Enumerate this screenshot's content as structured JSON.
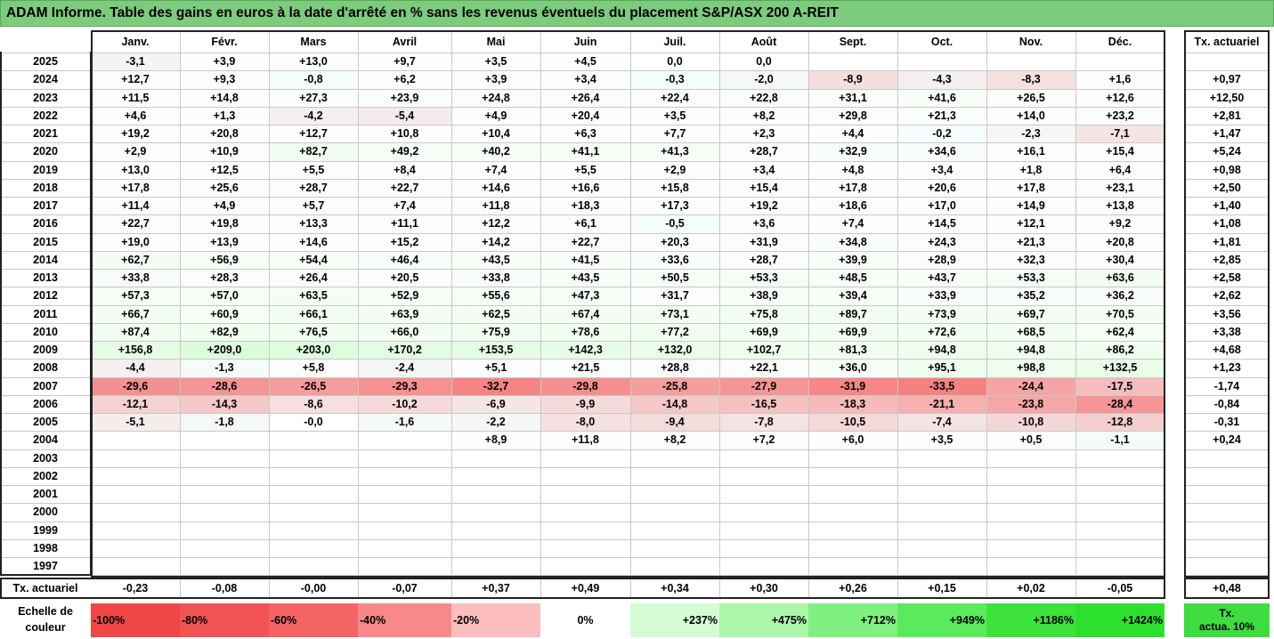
{
  "title": "ADAM Informe. Table des gains en euros à la date d'arrêté en % sans les revenus éventuels du placement S&P/ASX 200 A-REIT",
  "months": [
    "Janv.",
    "Févr.",
    "Mars",
    "Avril",
    "Mai",
    "Juin",
    "Juil.",
    "Août",
    "Sept.",
    "Oct.",
    "Nov.",
    "Déc."
  ],
  "tx_header": "Tx. actuariel",
  "rows": [
    {
      "year": "2025",
      "values": [
        "-3,1",
        "+3,9",
        "+13,0",
        "+9,7",
        "+3,5",
        "+4,5",
        "0,0",
        "0,0",
        "",
        "",
        "",
        ""
      ],
      "tx": ""
    },
    {
      "year": "2024",
      "values": [
        "+12,7",
        "+9,3",
        "-0,8",
        "+6,2",
        "+3,9",
        "+3,4",
        "-0,3",
        "-2,0",
        "-8,9",
        "-4,3",
        "-8,3",
        "+1,6"
      ],
      "tx": "+0,97"
    },
    {
      "year": "2023",
      "values": [
        "+11,5",
        "+14,8",
        "+27,3",
        "+23,9",
        "+24,8",
        "+26,4",
        "+22,4",
        "+22,8",
        "+31,1",
        "+41,6",
        "+26,5",
        "+12,6"
      ],
      "tx": "+12,50"
    },
    {
      "year": "2022",
      "values": [
        "+4,6",
        "+1,3",
        "-4,2",
        "-5,4",
        "+4,9",
        "+20,4",
        "+3,5",
        "+8,2",
        "+29,8",
        "+21,3",
        "+14,0",
        "+23,2"
      ],
      "tx": "+2,81"
    },
    {
      "year": "2021",
      "values": [
        "+19,2",
        "+20,8",
        "+12,7",
        "+10,8",
        "+10,4",
        "+6,3",
        "+7,7",
        "+2,3",
        "+4,4",
        "-0,2",
        "-2,3",
        "-7,1"
      ],
      "tx": "+1,47"
    },
    {
      "year": "2020",
      "values": [
        "+2,9",
        "+10,9",
        "+82,7",
        "+49,2",
        "+40,2",
        "+41,1",
        "+41,3",
        "+28,7",
        "+32,9",
        "+34,6",
        "+16,1",
        "+15,4"
      ],
      "tx": "+5,24"
    },
    {
      "year": "2019",
      "values": [
        "+13,0",
        "+12,5",
        "+5,5",
        "+8,4",
        "+7,4",
        "+5,5",
        "+2,9",
        "+3,4",
        "+4,8",
        "+3,4",
        "+1,8",
        "+6,4"
      ],
      "tx": "+0,98"
    },
    {
      "year": "2018",
      "values": [
        "+17,8",
        "+25,6",
        "+28,7",
        "+22,7",
        "+14,6",
        "+16,6",
        "+15,8",
        "+15,4",
        "+17,8",
        "+20,6",
        "+17,8",
        "+23,1"
      ],
      "tx": "+2,50"
    },
    {
      "year": "2017",
      "values": [
        "+11,4",
        "+4,9",
        "+5,7",
        "+7,4",
        "+11,8",
        "+18,3",
        "+17,3",
        "+19,2",
        "+18,6",
        "+17,0",
        "+14,9",
        "+13,8"
      ],
      "tx": "+1,40"
    },
    {
      "year": "2016",
      "values": [
        "+22,7",
        "+19,8",
        "+13,3",
        "+11,1",
        "+12,2",
        "+6,1",
        "-0,5",
        "+3,6",
        "+7,4",
        "+14,5",
        "+12,1",
        "+9,2"
      ],
      "tx": "+1,08"
    },
    {
      "year": "2015",
      "values": [
        "+19,0",
        "+13,9",
        "+14,6",
        "+15,2",
        "+14,2",
        "+22,7",
        "+20,3",
        "+31,9",
        "+34,8",
        "+24,3",
        "+21,3",
        "+20,8"
      ],
      "tx": "+1,81"
    },
    {
      "year": "2014",
      "values": [
        "+62,7",
        "+56,9",
        "+54,4",
        "+46,4",
        "+43,5",
        "+41,5",
        "+33,6",
        "+28,7",
        "+39,9",
        "+28,9",
        "+32,3",
        "+30,4"
      ],
      "tx": "+2,85"
    },
    {
      "year": "2013",
      "values": [
        "+33,8",
        "+28,3",
        "+26,4",
        "+20,5",
        "+33,8",
        "+43,5",
        "+50,5",
        "+53,3",
        "+48,5",
        "+43,7",
        "+53,3",
        "+63,6"
      ],
      "tx": "+2,58"
    },
    {
      "year": "2012",
      "values": [
        "+57,3",
        "+57,0",
        "+63,5",
        "+52,9",
        "+55,6",
        "+47,3",
        "+31,7",
        "+38,9",
        "+39,4",
        "+33,9",
        "+35,2",
        "+36,2"
      ],
      "tx": "+2,62"
    },
    {
      "year": "2011",
      "values": [
        "+66,7",
        "+60,9",
        "+66,1",
        "+63,9",
        "+62,5",
        "+67,4",
        "+73,1",
        "+75,8",
        "+89,7",
        "+73,9",
        "+69,7",
        "+70,5"
      ],
      "tx": "+3,56"
    },
    {
      "year": "2010",
      "values": [
        "+87,4",
        "+82,9",
        "+76,5",
        "+66,0",
        "+75,9",
        "+78,6",
        "+77,2",
        "+69,9",
        "+69,9",
        "+72,6",
        "+68,5",
        "+62,4"
      ],
      "tx": "+3,38"
    },
    {
      "year": "2009",
      "values": [
        "+156,8",
        "+209,0",
        "+203,0",
        "+170,2",
        "+153,5",
        "+142,3",
        "+132,0",
        "+102,7",
        "+81,3",
        "+94,8",
        "+94,8",
        "+86,2"
      ],
      "tx": "+4,68"
    },
    {
      "year": "2008",
      "values": [
        "-4,4",
        "-1,3",
        "+5,8",
        "-2,4",
        "+5,1",
        "+21,5",
        "+28,8",
        "+22,1",
        "+36,0",
        "+95,1",
        "+98,8",
        "+132,5"
      ],
      "tx": "+1,23"
    },
    {
      "year": "2007",
      "values": [
        "-29,6",
        "-28,6",
        "-26,5",
        "-29,3",
        "-32,7",
        "-29,8",
        "-25,8",
        "-27,9",
        "-31,9",
        "-33,5",
        "-24,4",
        "-17,5"
      ],
      "tx": "-1,74"
    },
    {
      "year": "2006",
      "values": [
        "-12,1",
        "-14,3",
        "-8,6",
        "-10,2",
        "-6,9",
        "-9,9",
        "-14,8",
        "-16,5",
        "-18,3",
        "-21,1",
        "-23,8",
        "-28,4"
      ],
      "tx": "-0,84"
    },
    {
      "year": "2005",
      "values": [
        "-5,1",
        "-1,8",
        "-0,0",
        "-1,6",
        "-2,2",
        "-8,0",
        "-9,4",
        "-7,8",
        "-10,5",
        "-7,4",
        "-10,8",
        "-12,8"
      ],
      "tx": "-0,31"
    },
    {
      "year": "2004",
      "values": [
        "",
        "",
        "",
        "",
        "+8,9",
        "+11,8",
        "+8,2",
        "+7,2",
        "+6,0",
        "+3,5",
        "+0,5",
        "-1,1"
      ],
      "tx": "+0,24"
    },
    {
      "year": "2003",
      "values": [
        "",
        "",
        "",
        "",
        "",
        "",
        "",
        "",
        "",
        "",
        "",
        ""
      ],
      "tx": ""
    },
    {
      "year": "2002",
      "values": [
        "",
        "",
        "",
        "",
        "",
        "",
        "",
        "",
        "",
        "",
        "",
        ""
      ],
      "tx": ""
    },
    {
      "year": "2001",
      "values": [
        "",
        "",
        "",
        "",
        "",
        "",
        "",
        "",
        "",
        "",
        "",
        ""
      ],
      "tx": ""
    },
    {
      "year": "2000",
      "values": [
        "",
        "",
        "",
        "",
        "",
        "",
        "",
        "",
        "",
        "",
        "",
        ""
      ],
      "tx": ""
    },
    {
      "year": "1999",
      "values": [
        "",
        "",
        "",
        "",
        "",
        "",
        "",
        "",
        "",
        "",
        "",
        ""
      ],
      "tx": ""
    },
    {
      "year": "1998",
      "values": [
        "",
        "",
        "",
        "",
        "",
        "",
        "",
        "",
        "",
        "",
        "",
        ""
      ],
      "tx": ""
    },
    {
      "year": "1997",
      "values": [
        "",
        "",
        "",
        "",
        "",
        "",
        "",
        "",
        "",
        "",
        "",
        ""
      ],
      "tx": ""
    }
  ],
  "footer": {
    "label": "Tx. actuariel",
    "values": [
      "-0,23",
      "-0,08",
      "-0,00",
      "-0,07",
      "+0,37",
      "+0,49",
      "+0,34",
      "+0,30",
      "+0,26",
      "+0,15",
      "+0,02",
      "-0,05"
    ],
    "tx": "+0,48"
  },
  "legend": {
    "label_line1": "Echelle de",
    "label_line2": "couleur",
    "items": [
      {
        "text": "-100%",
        "color": "#f14646",
        "align": "left"
      },
      {
        "text": "-80%",
        "color": "#f25454",
        "align": "left"
      },
      {
        "text": "-60%",
        "color": "#f46464",
        "align": "left"
      },
      {
        "text": "-40%",
        "color": "#f78989",
        "align": "left"
      },
      {
        "text": "-20%",
        "color": "#fbbebe",
        "align": "left"
      },
      {
        "text": "0%",
        "color": "#ffffff",
        "align": "center"
      },
      {
        "text": "+237%",
        "color": "#d6fcd6",
        "align": "right"
      },
      {
        "text": "+475%",
        "color": "#aaf7aa",
        "align": "right"
      },
      {
        "text": "+712%",
        "color": "#80f080",
        "align": "right"
      },
      {
        "text": "+949%",
        "color": "#5bea5b",
        "align": "right"
      },
      {
        "text": "+1186%",
        "color": "#3de23d",
        "align": "right"
      },
      {
        "text": "+1424%",
        "color": "#2ee02e",
        "align": "right"
      }
    ],
    "tx_line1": "Tx.",
    "tx_line2": "actua. 10%",
    "tx_color": "#3fdc3f"
  }
}
